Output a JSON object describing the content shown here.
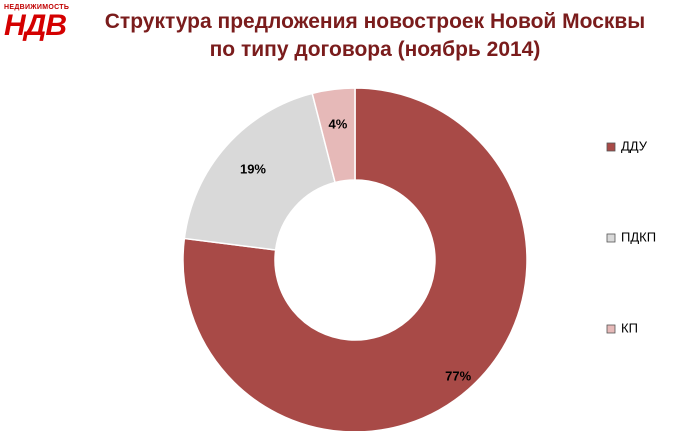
{
  "logo": {
    "tagline": "НЕДВИЖИМОСТЬ",
    "brand": "НДВ"
  },
  "chart_data": {
    "type": "donut",
    "title": "Структура предложения новостроек Новой Москвы  по типу договора (ноябрь 2014)",
    "categories": [
      "ДДУ",
      "ПДКП",
      "КП"
    ],
    "values": [
      77,
      19,
      4
    ],
    "value_labels": [
      "77%",
      "19%",
      "4%"
    ],
    "colors": [
      "#a84a47",
      "#d9d9d9",
      "#e6b9b8"
    ],
    "legend": "right"
  }
}
